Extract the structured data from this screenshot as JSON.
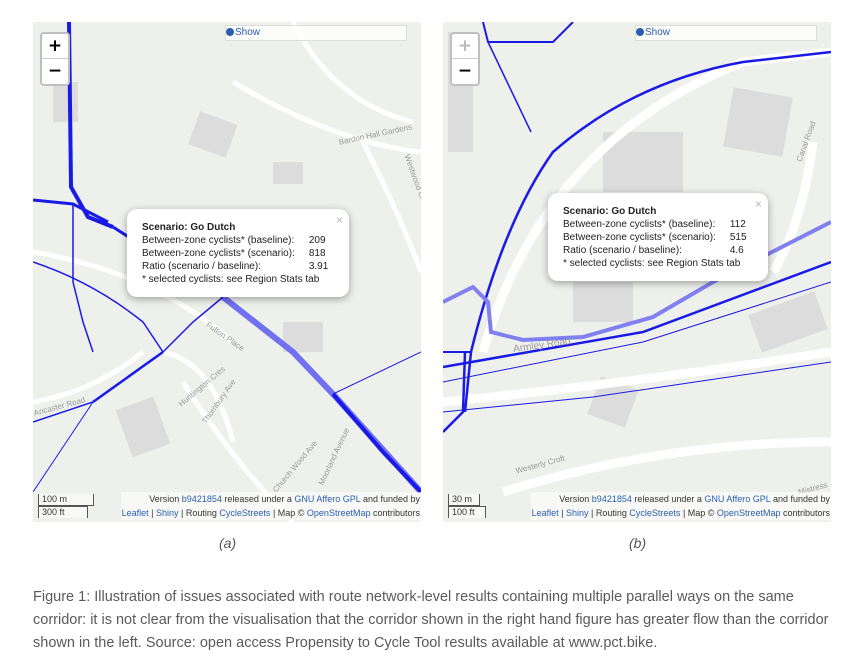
{
  "panels": [
    {
      "show": "Show",
      "zoom_in": "+",
      "zoom_out": "−",
      "popup": {
        "title": "Scenario: Go Dutch",
        "rows": [
          [
            "Between-zone cyclists* (baseline):",
            209
          ],
          [
            "Between-zone cyclists* (scenario):",
            818
          ],
          [
            "Ratio (scenario / baseline):",
            3.91
          ]
        ],
        "note": "* selected cyclists: see Region Stats tab",
        "close": "×"
      },
      "scale": [
        "100 m",
        "300 ft"
      ],
      "attribution": [
        [
          "Version ",
          false
        ],
        [
          "b9421854",
          true
        ],
        [
          " released under a ",
          false
        ],
        [
          "GNU Affero GPL",
          true
        ],
        [
          " and funded by",
          false
        ],
        [
          "Leaflet",
          true
        ],
        [
          " | ",
          false
        ],
        [
          "Shiny",
          true
        ],
        [
          " | Routing ",
          false
        ],
        [
          "CycleStreets",
          true
        ],
        [
          " | Map © ",
          false
        ],
        [
          "OpenStreetMap",
          true
        ],
        [
          " contributors",
          false
        ]
      ],
      "map_labels": [
        "Bardon Hall Gardens",
        "Westwood Croft",
        "Fulton Place",
        "Huntington Cres",
        "Thornbury Ave",
        "Ancaster Road",
        "Church Wood Ave",
        "Moorland Avenue"
      ],
      "caption": "(a)"
    },
    {
      "show": "Show",
      "zoom_in": "+",
      "zoom_out": "−",
      "popup": {
        "title": "Scenario: Go Dutch",
        "rows": [
          [
            "Between-zone cyclists* (baseline):",
            112
          ],
          [
            "Between-zone cyclists* (scenario):",
            515
          ],
          [
            "Ratio (scenario / baseline):",
            4.6
          ]
        ],
        "note": "* selected cyclists: see Region Stats tab",
        "close": "×"
      },
      "scale": [
        "30 m",
        "100 ft"
      ],
      "attribution": [
        [
          "Version ",
          false
        ],
        [
          "b9421854",
          true
        ],
        [
          " released under a ",
          false
        ],
        [
          "GNU Affero GPL",
          true
        ],
        [
          " and funded by",
          false
        ],
        [
          "Leaflet",
          true
        ],
        [
          " | ",
          false
        ],
        [
          "Shiny",
          true
        ],
        [
          " | Routing ",
          false
        ],
        [
          "CycleStreets",
          true
        ],
        [
          " | Map © ",
          false
        ],
        [
          "OpenStreetMap",
          true
        ],
        [
          " contributors",
          false
        ]
      ],
      "map_labels": [
        "Canal Road",
        "Armley Road",
        "Westerly Croft",
        "Mistress"
      ],
      "caption": "(b)"
    }
  ],
  "caption": "Figure 1: Illustration of issues associated with route network-level results containing multiple parallel ways on the same corridor: it is not clear from the visualisation that the corridor shown in the right hand figure has greater flow than the corridor shown in the left. Source: open access Propensity to Cycle Tool results available at www.pct.bike."
}
